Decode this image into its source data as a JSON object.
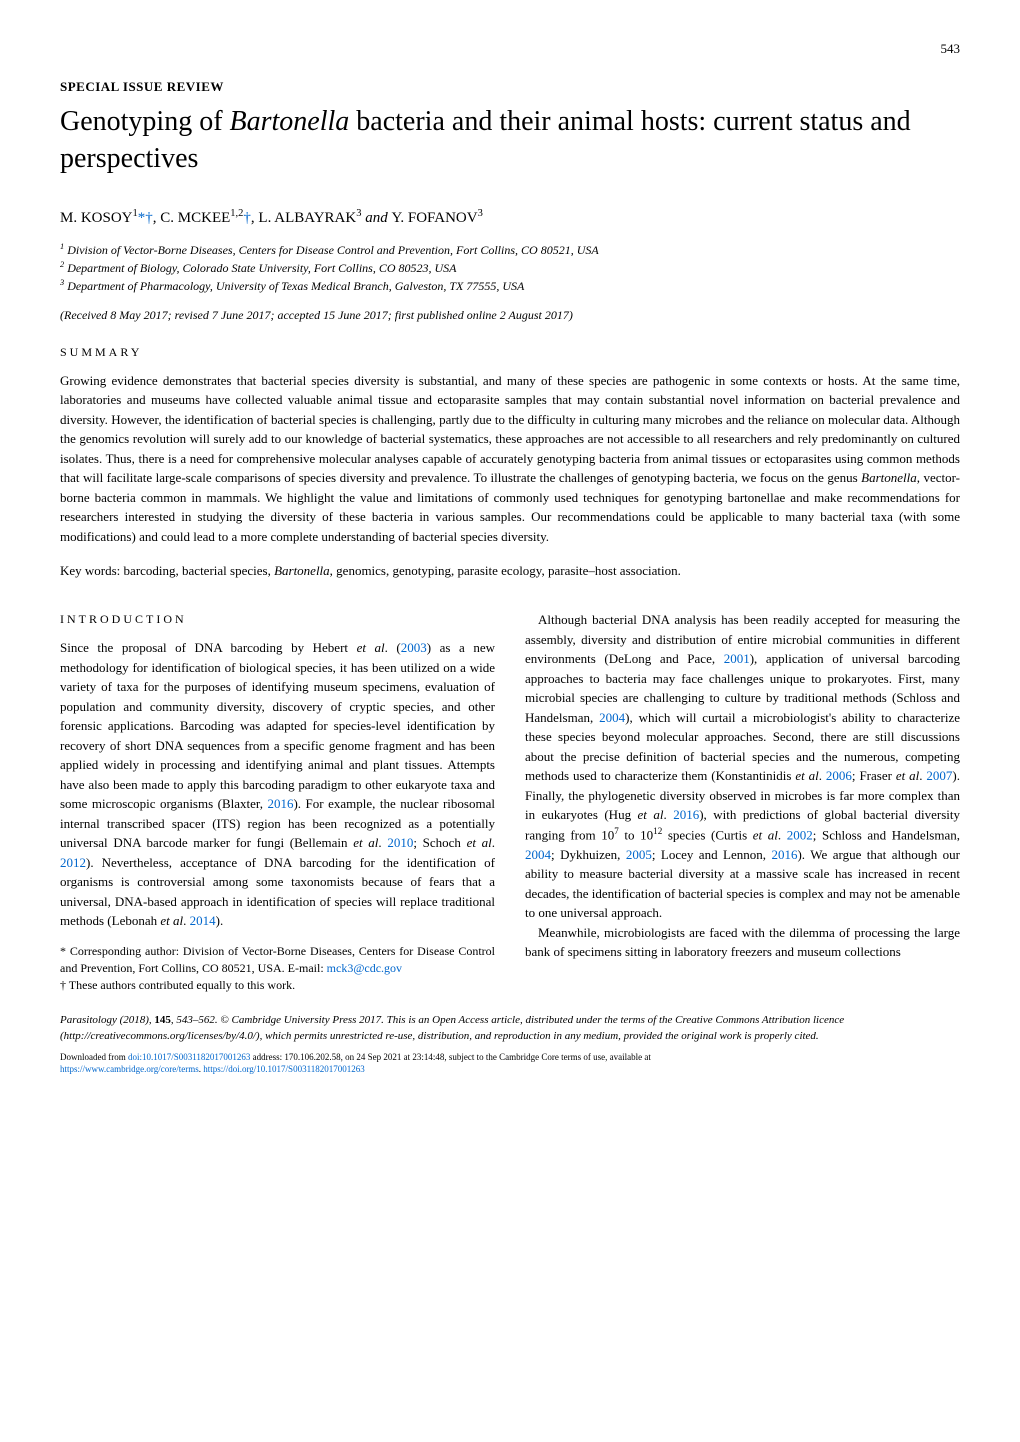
{
  "page_number": "543",
  "article_type": "SPECIAL ISSUE REVIEW",
  "title_part1": "Genotyping of ",
  "title_italic": "Bartonella",
  "title_part2": " bacteria and their animal hosts: current status and perspectives",
  "authors": {
    "a1": "M. KOSOY",
    "a1_sup": "1",
    "a1_link": "*†",
    "a2": ", C. MCKEE",
    "a2_sup": "1,2",
    "a2_link": "†",
    "a3": ", L. ALBAYRAK",
    "a3_sup": "3",
    "and": " and ",
    "a4": "Y. FOFANOV",
    "a4_sup": "3"
  },
  "affiliations": {
    "aff1": "Division of Vector-Borne Diseases, Centers for Disease Control and Prevention, Fort Collins, CO 80521, USA",
    "aff2": "Department of Biology, Colorado State University, Fort Collins, CO 80523, USA",
    "aff3": "Department of Pharmacology, University of Texas Medical Branch, Galveston, TX 77555, USA"
  },
  "received": "(Received 8 May 2017; revised 7 June 2017; accepted 15 June 2017; first published online 2 August 2017)",
  "summary_heading": "SUMMARY",
  "summary_p1": "Growing evidence demonstrates that bacterial species diversity is substantial, and many of these species are pathogenic in some contexts or hosts. At the same time, laboratories and museums have collected valuable animal tissue and ectoparasite samples that may contain substantial novel information on bacterial prevalence and diversity. However, the identification of bacterial species is challenging, partly due to the difficulty in culturing many microbes and the reliance on molecular data. Although the genomics revolution will surely add to our knowledge of bacterial systematics, these approaches are not accessible to all researchers and rely predominantly on cultured isolates. Thus, there is a need for comprehensive molecular analyses capable of accurately genotyping bacteria from animal tissues or ectoparasites using common methods that will facilitate large-scale comparisons of species diversity and prevalence. To illustrate the challenges of genotyping bacteria, we focus on the genus ",
  "summary_italic": "Bartonella",
  "summary_p2": ", vector-borne bacteria common in mammals. We highlight the value and limitations of commonly used techniques for genotyping bartonellae and make recommendations for researchers interested in studying the diversity of these bacteria in various samples. Our recommendations could be applicable to many bacterial taxa (with some modifications) and could lead to a more complete understanding of bacterial species diversity.",
  "keywords_label": "Key words: ",
  "keywords_text1": "barcoding, bacterial species, ",
  "keywords_italic": "Bartonella",
  "keywords_text2": ", genomics, genotyping, parasite ecology, parasite–host association.",
  "intro_heading": "INTRODUCTION",
  "col1": {
    "p1_a": "Since the proposal of DNA barcoding by Hebert ",
    "p1_etal1": "et al",
    "p1_b": ". (",
    "p1_link1": "2003",
    "p1_c": ") as a new methodology for identification of biological species, it has been utilized on a wide variety of taxa for the purposes of identifying museum specimens, evaluation of population and community diversity, discovery of cryptic species, and other forensic applications. Barcoding was adapted for species-level identification by recovery of short DNA sequences from a specific genome fragment and has been applied widely in processing and identifying animal and plant tissues. Attempts have also been made to apply this barcoding paradigm to other eukaryote taxa and some microscopic organisms (Blaxter, ",
    "p1_link2": "2016",
    "p1_d": "). For example, the nuclear ribosomal internal transcribed spacer (ITS) region has been recognized as a potentially universal DNA barcode marker for fungi (Bellemain ",
    "p1_etal2": "et al",
    "p1_e": ". ",
    "p1_link3": "2010",
    "p1_f": "; Schoch ",
    "p1_etal3": "et al",
    "p1_g": ". ",
    "p1_link4": "2012",
    "p1_h": "). Nevertheless, acceptance of DNA barcoding for the identification of organisms is controversial among some taxonomists because of fears that a universal, DNA-based approach in identification of species will replace traditional methods (Lebonah ",
    "p1_etal4": "et al",
    "p1_i": ". ",
    "p1_link5": "2014",
    "p1_j": ")."
  },
  "footnote": {
    "f1": "* Corresponding author: Division of Vector-Borne Diseases, Centers for Disease Control and Prevention, Fort Collins, CO 80521, USA. E-mail: ",
    "email": "mck3@cdc.gov",
    "f2": "† These authors contributed equally to this work."
  },
  "col2": {
    "p1_a": "Although bacterial DNA analysis has been readily accepted for measuring the assembly, diversity and distribution of entire microbial communities in different environments (DeLong and Pace, ",
    "p1_link1": "2001",
    "p1_b": "), application of universal barcoding approaches to bacteria may face challenges unique to prokaryotes. First, many microbial species are challenging to culture by traditional methods (Schloss and Handelsman, ",
    "p1_link2": "2004",
    "p1_c": "), which will curtail a microbiologist's ability to characterize these species beyond molecular approaches. Second, there are still discussions about the precise definition of bacterial species and the numerous, competing methods used to characterize them (Konstantinidis ",
    "p1_etal1": "et al",
    "p1_d": ". ",
    "p1_link3": "2006",
    "p1_e": "; Fraser ",
    "p1_etal2": "et al",
    "p1_f": ". ",
    "p1_link4": "2007",
    "p1_g": "). Finally, the phylogenetic diversity observed in microbes is far more complex than in eukaryotes (Hug ",
    "p1_etal3": "et al",
    "p1_h": ". ",
    "p1_link5": "2016",
    "p1_i": "), with predictions of global bacterial diversity ranging from 10",
    "p1_sup1": "7",
    "p1_j": " to 10",
    "p1_sup2": "12",
    "p1_k": " species (Curtis ",
    "p1_etal4": "et al",
    "p1_l": ". ",
    "p1_link6": "2002",
    "p1_m": "; Schloss and Handelsman, ",
    "p1_link7": "2004",
    "p1_n": "; Dykhuizen, ",
    "p1_link8": "2005",
    "p1_o": "; Locey and Lennon, ",
    "p1_link9": "2016",
    "p1_p": "). We argue that although our ability to measure bacterial diversity at a massive scale has increased in recent decades, the identification of bacterial species is complex and may not be amenable to one universal approach.",
    "p2": "Meanwhile, microbiologists are faced with the dilemma of processing the large bank of specimens sitting in laboratory freezers and museum collections"
  },
  "citation": {
    "journal": "Parasitology",
    "year": " (2018), ",
    "vol": "145",
    "pages": ", 543–562.   © Cambridge University Press 2017. This is an Open Access article, distributed under the terms of the Creative Commons Attribution licence (http://creativecommons.org/licenses/by/4.0/), which permits unrestricted re-use, distribution, and reproduction in any medium, provided the original work is properly cited."
  },
  "download": {
    "line1a": "Downloaded from ",
    "doi": "doi:10.1017/S0031182017001263",
    "line1b": " address: 170.106.202.58, on 24 Sep 2021 at 23:14:48, subject to the Cambridge Core terms of use, available at",
    "line2a": "https://www.cambridge.org/core/terms",
    "line2b": ". ",
    "line2c": "https://doi.org/10.1017/S0031182017001263"
  }
}
